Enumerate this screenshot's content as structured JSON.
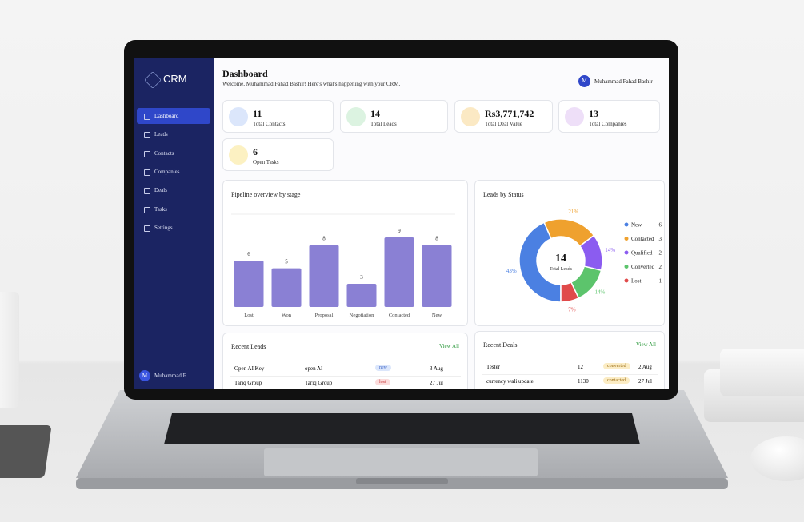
{
  "sidebar": {
    "brand": "CRM",
    "nav": [
      "Dashboard",
      "Leads",
      "Contacts",
      "Companies",
      "Deals",
      "Tasks",
      "Settings"
    ],
    "user_initial": "M",
    "user_name": "Muhammad F..."
  },
  "header": {
    "title": "Dashboard",
    "subtitle": "Welcome, Muhammad Fahad Bashir! Here's what's happening with your CRM.",
    "user_initial": "M",
    "user_name": "Muhammad Fahad Bashir"
  },
  "stats": [
    {
      "value": "11",
      "label": "Total Contacts"
    },
    {
      "value": "14",
      "label": "Total Leads"
    },
    {
      "value": "Rs3,771,742",
      "label": "Total Deal Value"
    },
    {
      "value": "13",
      "label": "Total Companies"
    },
    {
      "value": "6",
      "label": "Open Tasks"
    }
  ],
  "chart_data": [
    {
      "type": "bar",
      "title": "Pipeline overview by stage",
      "categories": [
        "Lost",
        "Won",
        "Proposal",
        "Negotiation",
        "Contacted",
        "New"
      ],
      "values": [
        6,
        5,
        8,
        3,
        9,
        8
      ],
      "color": "#8a80d4",
      "ylim": [
        0,
        12
      ]
    },
    {
      "type": "pie",
      "title": "Leads by Status",
      "categories": [
        "New",
        "Contacted",
        "Qualified",
        "Converted",
        "Lost"
      ],
      "values": [
        43,
        21,
        14,
        14,
        7
      ],
      "value_labels": [
        "43%",
        "21%",
        "14%",
        "14%",
        "7%"
      ],
      "colors": [
        "#4b80e2",
        "#efa12e",
        "#8b5cf0",
        "#5cc46c",
        "#e04a4a"
      ],
      "counts": [
        6,
        3,
        2,
        2,
        1
      ],
      "center_value": 14,
      "center_label": "Total Leads"
    }
  ],
  "recent_leads": {
    "title": "Recent Leads",
    "link": "View All",
    "rows": [
      [
        "Open AI Key",
        "open AI",
        "new",
        "3 Aug"
      ],
      [
        "Tariq Group",
        "Tariq Group",
        "lost",
        "27 Jul"
      ]
    ]
  },
  "recent_deals": {
    "title": "Recent Deals",
    "link": "View All",
    "rows": [
      [
        "Tester",
        "12",
        "converted",
        "2 Aug"
      ],
      [
        "currency wali update",
        "1130",
        "contacted",
        "27 Jul"
      ]
    ]
  }
}
